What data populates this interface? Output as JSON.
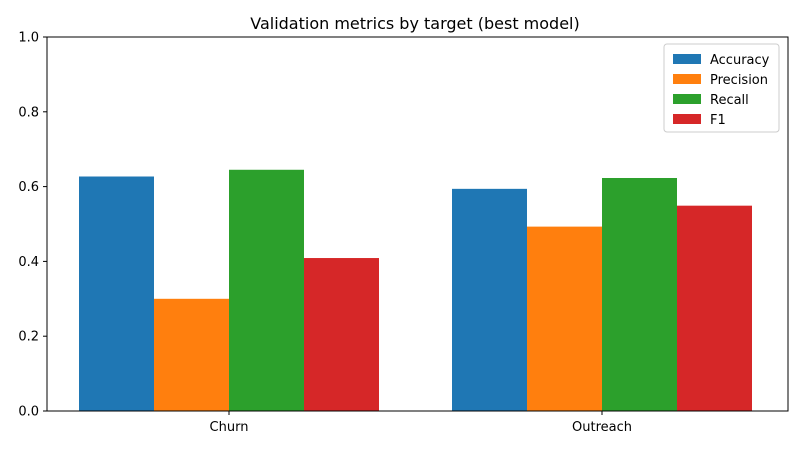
{
  "chart_data": {
    "type": "bar",
    "title": "Validation metrics by target (best model)",
    "xlabel": "",
    "ylabel": "",
    "categories": [
      "Churn",
      "Outreach"
    ],
    "series": [
      {
        "name": "Accuracy",
        "color": "#1f77b4",
        "values": [
          0.627,
          0.594
        ]
      },
      {
        "name": "Precision",
        "color": "#ff7f0e",
        "values": [
          0.3,
          0.493
        ]
      },
      {
        "name": "Recall",
        "color": "#2ca02c",
        "values": [
          0.645,
          0.623
        ]
      },
      {
        "name": "F1",
        "color": "#d62728",
        "values": [
          0.409,
          0.549
        ]
      }
    ],
    "ylim": [
      0,
      1.0
    ],
    "yticks": [
      "0.0",
      "0.2",
      "0.4",
      "0.6",
      "0.8",
      "1.0"
    ],
    "grid": false,
    "legend_position": "top-right"
  }
}
